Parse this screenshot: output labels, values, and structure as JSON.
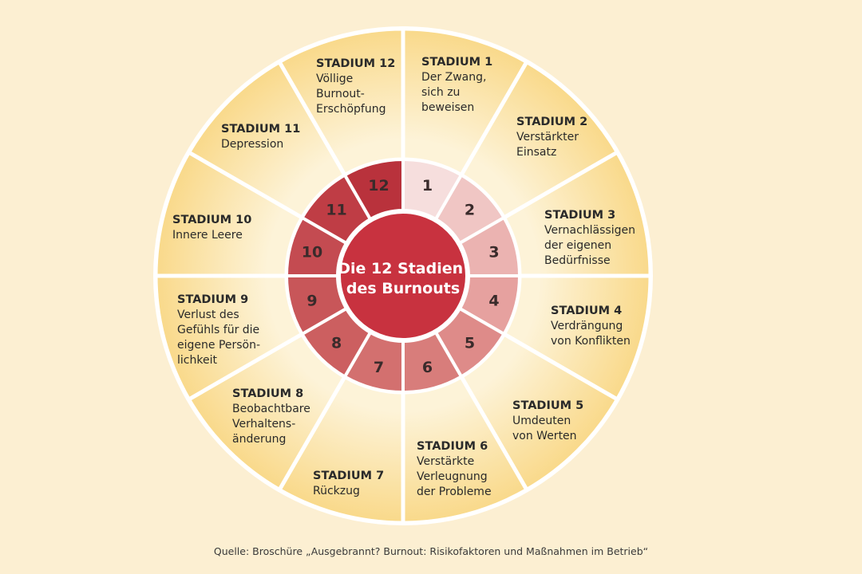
{
  "center_title": [
    "Die 12 Stadien",
    "des Burnouts"
  ],
  "stages": [
    {
      "number": "1",
      "heading": "STADIUM 1",
      "text": [
        "Der Zwang,",
        "sich zu",
        "beweisen"
      ]
    },
    {
      "number": "2",
      "heading": "STADIUM 2",
      "text": [
        "Verstärkter",
        "Einsatz"
      ]
    },
    {
      "number": "3",
      "heading": "STADIUM 3",
      "text": [
        "Vernachlässigen",
        "der eigenen",
        "Bedürfnisse"
      ]
    },
    {
      "number": "4",
      "heading": "STADIUM 4",
      "text": [
        "Verdrängung",
        "von Konflikten"
      ]
    },
    {
      "number": "5",
      "heading": "STADIUM 5",
      "text": [
        "Umdeuten",
        "von Werten"
      ]
    },
    {
      "number": "6",
      "heading": "STADIUM 6",
      "text": [
        "Verstärkte",
        "Verleugnung",
        "der Probleme"
      ]
    },
    {
      "number": "7",
      "heading": "STADIUM 7",
      "text": [
        "Rückzug"
      ]
    },
    {
      "number": "8",
      "heading": "STADIUM 8",
      "text": [
        "Beobachtbare",
        "Verhaltens-",
        "änderung"
      ]
    },
    {
      "number": "9",
      "heading": "STADIUM 9",
      "text": [
        "Verlust des",
        "Gefühls für die",
        "eigene Persön-",
        "lichkeit"
      ]
    },
    {
      "number": "10",
      "heading": "STADIUM 10",
      "text": [
        "Innere Leere"
      ]
    },
    {
      "number": "11",
      "heading": "STADIUM 11",
      "text": [
        "Depression"
      ]
    },
    {
      "number": "12",
      "heading": "STADIUM 12",
      "text": [
        "Völlige",
        "Burnout-",
        "Erschöpfung"
      ]
    }
  ],
  "inner_colors": [
    "#f6dedd",
    "#f0c6c4",
    "#ebb3b1",
    "#e6a19f",
    "#de8b89",
    "#d87d7b",
    "#d3706f",
    "#cc5f60",
    "#c85659",
    "#c44b51",
    "#bf3d45",
    "#b9323c"
  ],
  "center_color": "#c8323f",
  "outer_colors": {
    "light": "#fdf3d8",
    "warm": "#f9d98a"
  },
  "source": "Quelle: Broschüre „Ausgebrannt? Burnout: Risikofaktoren und Maßnahmen im Betrieb“"
}
